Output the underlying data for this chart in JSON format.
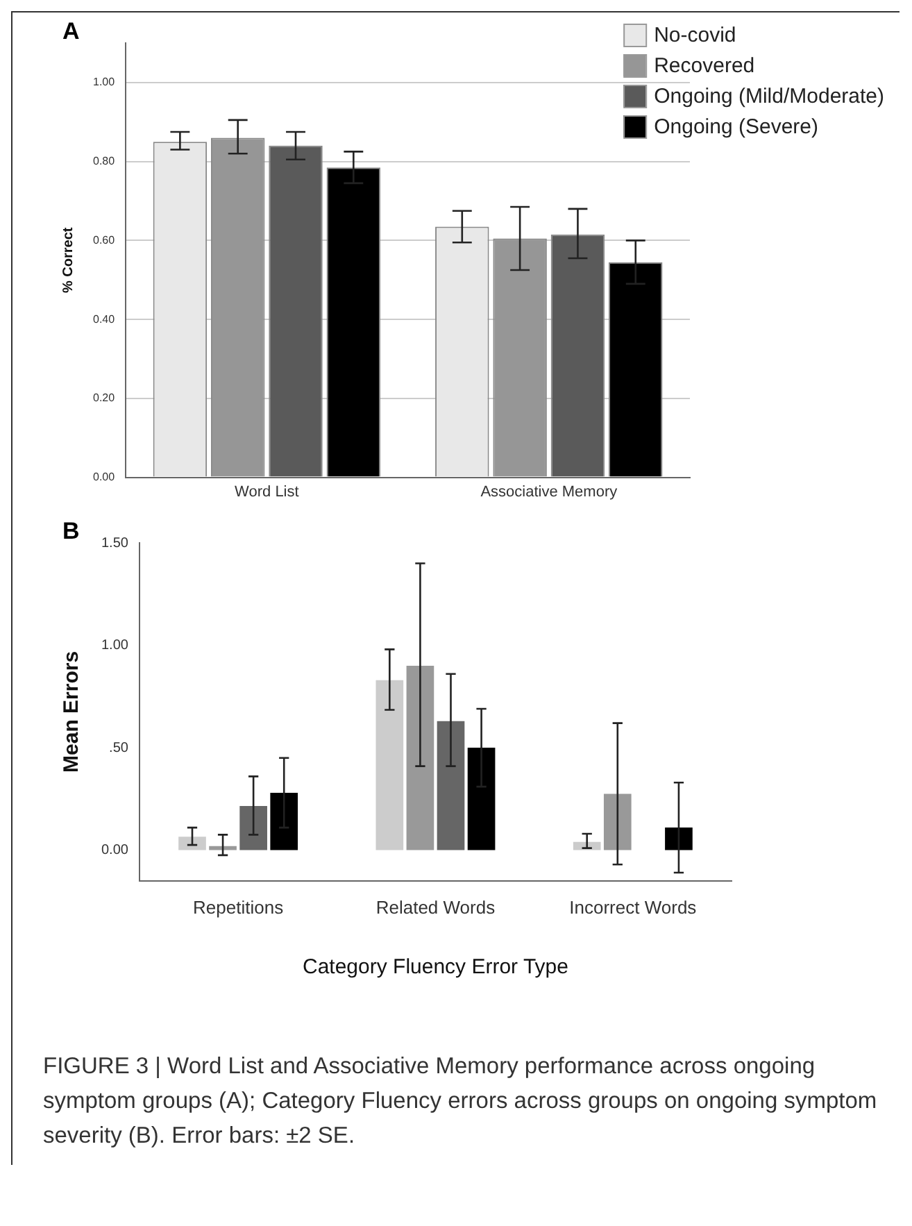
{
  "chart_data": [
    {
      "type": "bar",
      "ylabel": "% Correct",
      "annotations": [
        "A"
      ],
      "categories": [
        "Word List",
        "Associative Memory"
      ],
      "series": [
        {
          "name": "No-covid",
          "color": "#e8e8e8",
          "values": [
            0.85,
            0.635
          ],
          "errors": [
            [
              0.83,
              0.875
            ],
            [
              0.595,
              0.675
            ]
          ]
        },
        {
          "name": "Recovered",
          "color": "#969696",
          "values": [
            0.86,
            0.605
          ],
          "errors": [
            [
              0.82,
              0.905
            ],
            [
              0.525,
              0.685
            ]
          ]
        },
        {
          "name": "Ongoing (Mild/Moderate)",
          "color": "#5a5a5a",
          "values": [
            0.84,
            0.615
          ],
          "errors": [
            [
              0.805,
              0.875
            ],
            [
              0.555,
              0.68
            ]
          ]
        },
        {
          "name": "Ongoing (Severe)",
          "color": "#000000",
          "values": [
            0.785,
            0.545
          ],
          "errors": [
            [
              0.745,
              0.825
            ],
            [
              0.49,
              0.6
            ]
          ]
        }
      ],
      "ylim": [
        0,
        1.1
      ],
      "yticks": [
        {
          "value": 0,
          "label": "0.00"
        },
        {
          "value": 0.2,
          "label": "0.20"
        },
        {
          "value": 0.4,
          "label": "0.40"
        },
        {
          "value": 0.6,
          "label": "0.60"
        },
        {
          "value": 0.8,
          "label": "0.80"
        },
        {
          "value": 1,
          "label": "1.00"
        }
      ],
      "grid": "y",
      "legend": "top right"
    },
    {
      "type": "bar",
      "ylabel": "Mean Errors",
      "xlabel": "Category Fluency Error Type",
      "annotations": [
        "B",
        "FIGURE 3 | Word List and Associative Memory performance across ongoing symptom groups (A); Category Fluency errors across groups on ongoing symptom severity (B). Error bars: ±2 SE."
      ],
      "categories": [
        "Repetitions",
        "Related Words",
        "Incorrect Words"
      ],
      "series": [
        {
          "color": "#cccccc",
          "values": [
            0.065,
            0.83,
            0.04
          ],
          "errors": [
            [
              0.025,
              0.11
            ],
            [
              0.685,
              0.98
            ],
            [
              0.01,
              0.08
            ]
          ]
        },
        {
          "color": "#999999",
          "values": [
            0.02,
            0.9,
            0.275
          ],
          "errors": [
            [
              -0.025,
              0.075
            ],
            [
              0.41,
              1.4
            ],
            [
              -0.07,
              0.62
            ]
          ]
        },
        {
          "color": "#666666",
          "values": [
            0.215,
            0.63,
            0
          ],
          "errors": [
            [
              0.075,
              0.36
            ],
            [
              0.41,
              0.86
            ],
            null
          ]
        },
        {
          "color": "#000000",
          "values": [
            0.28,
            0.5,
            0.11
          ],
          "errors": [
            [
              0.11,
              0.45
            ],
            [
              0.31,
              0.69
            ],
            [
              -0.11,
              0.33
            ]
          ]
        }
      ],
      "ylim": [
        -0.15,
        1.5
      ],
      "yticks": [
        {
          "value": 0,
          "label": "0.00"
        },
        {
          "value": 0.5,
          "label": ".50"
        },
        {
          "value": 1,
          "label": "1.00"
        },
        {
          "value": 1.5,
          "label": "1.50"
        }
      ]
    }
  ]
}
